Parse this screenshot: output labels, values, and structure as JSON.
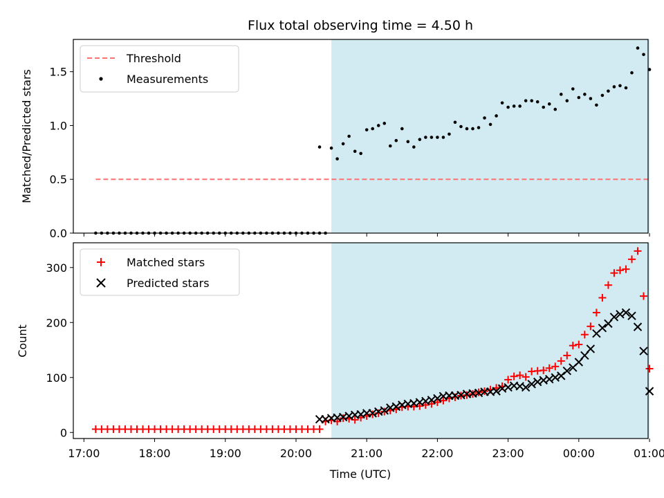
{
  "chart_data": [
    {
      "type": "scatter",
      "title": "Flux total observing time = 4.50 h",
      "xlabel": "",
      "ylabel": "Matched/Predicted stars",
      "xlim_hours": [
        16.85,
        24.98
      ],
      "ylim": [
        0,
        1.8
      ],
      "yticks": [
        0.0,
        0.5,
        1.0,
        1.5
      ],
      "ytick_labels": [
        "0.0",
        "0.5",
        "1.0",
        "1.5"
      ],
      "shaded_region": {
        "x_start": "20:30",
        "x_end": "01:00",
        "color": "#add8e6"
      },
      "legend": {
        "position": "upper left"
      },
      "threshold": {
        "name": "Threshold",
        "y": 0.5,
        "x_start": "17:10",
        "x_end": "01:00",
        "color": "#ff7070",
        "style": "dashed"
      },
      "series": [
        {
          "name": "Measurements",
          "color": "#000000",
          "marker": "dot",
          "x": [
            "17:10",
            "17:15",
            "17:20",
            "17:25",
            "17:30",
            "17:35",
            "17:40",
            "17:45",
            "17:50",
            "17:55",
            "18:00",
            "18:05",
            "18:10",
            "18:15",
            "18:20",
            "18:25",
            "18:30",
            "18:35",
            "18:40",
            "18:45",
            "18:50",
            "18:55",
            "19:00",
            "19:05",
            "19:10",
            "19:15",
            "19:20",
            "19:25",
            "19:30",
            "19:35",
            "19:40",
            "19:45",
            "19:50",
            "19:55",
            "20:00",
            "20:05",
            "20:10",
            "20:15",
            "20:20",
            "20:25",
            "20:20",
            "20:30",
            "20:35",
            "20:40",
            "20:45",
            "20:50",
            "20:55",
            "21:00",
            "21:05",
            "21:10",
            "21:15",
            "21:20",
            "21:25",
            "21:30",
            "21:35",
            "21:40",
            "21:45",
            "21:50",
            "21:55",
            "22:00",
            "22:05",
            "22:10",
            "22:15",
            "22:20",
            "22:25",
            "22:30",
            "22:35",
            "22:40",
            "22:45",
            "22:50",
            "22:55",
            "23:00",
            "23:05",
            "23:10",
            "23:15",
            "23:20",
            "23:25",
            "23:30",
            "23:35",
            "23:40",
            "23:45",
            "23:50",
            "23:55",
            "00:00",
            "00:05",
            "00:10",
            "00:15",
            "00:20",
            "00:25",
            "00:30",
            "00:35",
            "00:40",
            "00:45",
            "00:50",
            "00:55",
            "01:00"
          ],
          "y": [
            0,
            0,
            0,
            0,
            0,
            0,
            0,
            0,
            0,
            0,
            0,
            0,
            0,
            0,
            0,
            0,
            0,
            0,
            0,
            0,
            0,
            0,
            0,
            0,
            0,
            0,
            0,
            0,
            0,
            0,
            0,
            0,
            0,
            0,
            0,
            0,
            0,
            0,
            0,
            0,
            0.8,
            0.79,
            0.69,
            0.83,
            0.9,
            0.76,
            0.74,
            0.96,
            0.97,
            1.0,
            1.02,
            0.81,
            0.86,
            0.97,
            0.85,
            0.8,
            0.87,
            0.89,
            0.89,
            0.89,
            0.89,
            0.92,
            1.03,
            0.99,
            0.97,
            0.97,
            0.98,
            1.07,
            1.01,
            1.09,
            1.21,
            1.17,
            1.18,
            1.18,
            1.23,
            1.23,
            1.22,
            1.17,
            1.2,
            1.15,
            1.29,
            1.23,
            1.34,
            1.26,
            1.29,
            1.25,
            1.19,
            1.28,
            1.32,
            1.36,
            1.37,
            1.35,
            1.49,
            1.72,
            1.66,
            1.52
          ]
        }
      ]
    },
    {
      "type": "scatter",
      "title": "",
      "xlabel": "Time (UTC)",
      "ylabel": "Count",
      "xlim_hours": [
        16.85,
        24.98
      ],
      "ylim": [
        -11,
        345
      ],
      "yticks": [
        0,
        100,
        200,
        300
      ],
      "ytick_labels": [
        "0",
        "100",
        "200",
        "300"
      ],
      "xticks": [
        "17:00",
        "18:00",
        "19:00",
        "20:00",
        "21:00",
        "22:00",
        "23:00",
        "00:00",
        "01:00"
      ],
      "shaded_region": {
        "x_start": "20:30",
        "x_end": "01:00",
        "color": "#add8e6"
      },
      "legend": {
        "position": "upper left"
      },
      "series": [
        {
          "name": "Matched stars",
          "color": "#ff0000",
          "marker": "plus",
          "x": [
            "17:10",
            "17:15",
            "17:20",
            "17:25",
            "17:30",
            "17:35",
            "17:40",
            "17:45",
            "17:50",
            "17:55",
            "18:00",
            "18:05",
            "18:10",
            "18:15",
            "18:20",
            "18:25",
            "18:30",
            "18:35",
            "18:40",
            "18:45",
            "18:50",
            "18:55",
            "19:00",
            "19:05",
            "19:10",
            "19:15",
            "19:20",
            "19:25",
            "19:30",
            "19:35",
            "19:40",
            "19:45",
            "19:50",
            "19:55",
            "20:00",
            "20:05",
            "20:10",
            "20:15",
            "20:20",
            "20:25",
            "20:30",
            "20:35",
            "20:40",
            "20:45",
            "20:50",
            "20:55",
            "21:00",
            "21:05",
            "21:10",
            "21:15",
            "21:20",
            "21:25",
            "21:30",
            "21:35",
            "21:40",
            "21:45",
            "21:50",
            "21:55",
            "22:00",
            "22:05",
            "22:10",
            "22:15",
            "22:20",
            "22:25",
            "22:30",
            "22:35",
            "22:40",
            "22:45",
            "22:50",
            "22:55",
            "23:00",
            "23:05",
            "23:10",
            "23:15",
            "23:20",
            "23:25",
            "23:30",
            "23:35",
            "23:40",
            "23:45",
            "23:50",
            "23:55",
            "00:00",
            "00:05",
            "00:10",
            "00:15",
            "00:20",
            "00:25",
            "00:30",
            "00:35",
            "00:40",
            "00:45",
            "00:50",
            "00:55",
            "01:00",
            "01:00"
          ],
          "y": [
            6,
            6,
            6,
            6,
            6,
            6,
            6,
            6,
            6,
            6,
            6,
            6,
            6,
            6,
            6,
            6,
            6,
            6,
            6,
            6,
            6,
            6,
            6,
            6,
            6,
            6,
            6,
            6,
            6,
            6,
            6,
            6,
            6,
            6,
            6,
            6,
            6,
            6,
            6,
            20,
            22,
            20,
            26,
            25,
            23,
            27,
            30,
            33,
            35,
            38,
            40,
            42,
            46,
            47,
            47,
            48,
            50,
            52,
            55,
            58,
            62,
            64,
            67,
            68,
            70,
            73,
            75,
            78,
            81,
            84,
            96,
            102,
            104,
            101,
            111,
            112,
            113,
            117,
            120,
            130,
            140,
            158,
            160,
            178,
            193,
            218,
            245,
            268,
            290,
            295,
            297,
            315,
            330,
            248,
            116,
            116
          ],
          "note": ""
        },
        {
          "name": "Predicted stars",
          "color": "#000000",
          "marker": "x",
          "x": [
            "20:20",
            "20:25",
            "20:30",
            "20:35",
            "20:40",
            "20:45",
            "20:50",
            "20:55",
            "21:00",
            "21:05",
            "21:10",
            "21:15",
            "21:20",
            "21:25",
            "21:30",
            "21:35",
            "21:40",
            "21:45",
            "21:50",
            "21:55",
            "22:00",
            "22:05",
            "22:10",
            "22:15",
            "22:20",
            "22:25",
            "22:30",
            "22:35",
            "22:40",
            "22:45",
            "22:50",
            "22:55",
            "23:00",
            "23:05",
            "23:10",
            "23:15",
            "23:20",
            "23:25",
            "23:30",
            "23:35",
            "23:40",
            "23:45",
            "23:50",
            "23:55",
            "00:00",
            "00:05",
            "00:10",
            "00:15",
            "00:20",
            "00:25",
            "00:30",
            "00:35",
            "00:40",
            "00:45",
            "00:50",
            "00:55",
            "01:00"
          ],
          "y": [
            24,
            24,
            26,
            27,
            28,
            30,
            32,
            33,
            35,
            35,
            38,
            40,
            45,
            47,
            50,
            52,
            53,
            55,
            57,
            59,
            62,
            66,
            67,
            67,
            68,
            70,
            71,
            72,
            74,
            74,
            75,
            80,
            82,
            85,
            84,
            82,
            88,
            92,
            95,
            97,
            100,
            103,
            112,
            118,
            128,
            140,
            152,
            180,
            190,
            198,
            210,
            215,
            218,
            212,
            192,
            148,
            75
          ]
        }
      ]
    }
  ]
}
